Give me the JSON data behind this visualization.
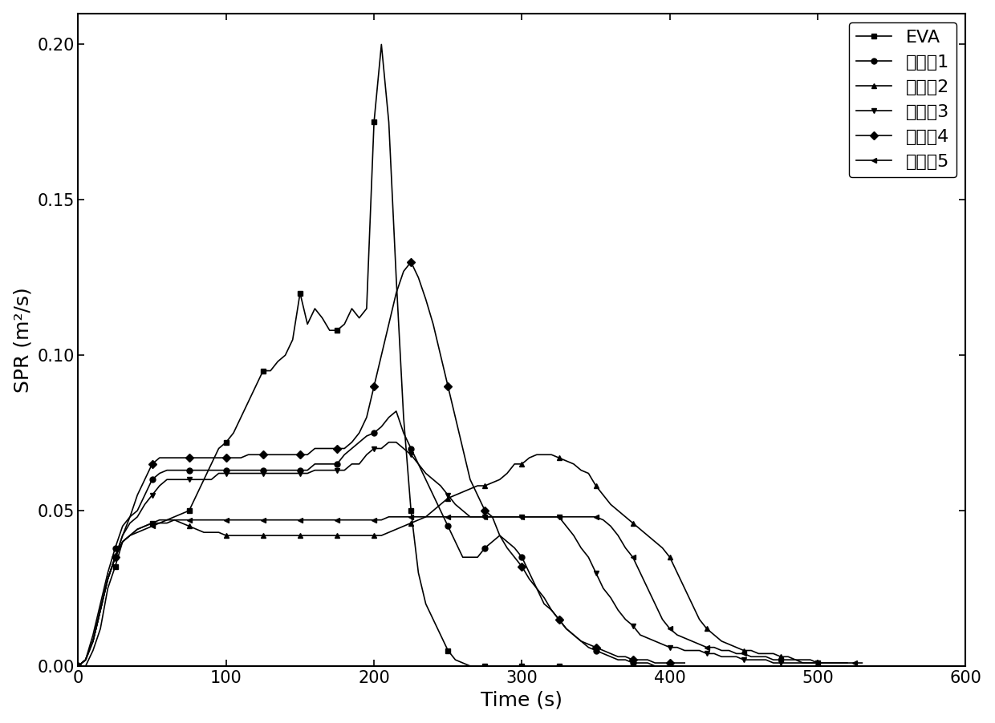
{
  "title": "",
  "xlabel": "Time (s)",
  "ylabel": "SPR (m²/s)",
  "xlim": [
    0,
    600
  ],
  "ylim": [
    0.0,
    0.21
  ],
  "yticks": [
    0.0,
    0.05,
    0.1,
    0.15,
    0.2
  ],
  "xticks": [
    0,
    100,
    200,
    300,
    400,
    500,
    600
  ],
  "series": [
    {
      "label": "EVA",
      "marker": "s",
      "color": "#000000",
      "x": [
        0,
        5,
        10,
        15,
        20,
        25,
        30,
        35,
        40,
        45,
        50,
        55,
        60,
        65,
        70,
        75,
        80,
        85,
        90,
        95,
        100,
        105,
        110,
        115,
        120,
        125,
        130,
        135,
        140,
        145,
        150,
        155,
        160,
        165,
        170,
        175,
        180,
        185,
        190,
        195,
        200,
        205,
        210,
        215,
        220,
        225,
        230,
        235,
        240,
        245,
        250,
        255,
        260,
        265,
        270,
        275,
        280,
        285,
        290,
        295,
        300,
        305,
        310,
        315,
        320,
        325,
        330
      ],
      "y": [
        0.0,
        0.0,
        0.005,
        0.012,
        0.025,
        0.032,
        0.04,
        0.042,
        0.044,
        0.045,
        0.046,
        0.046,
        0.047,
        0.048,
        0.049,
        0.05,
        0.055,
        0.06,
        0.065,
        0.07,
        0.072,
        0.075,
        0.08,
        0.085,
        0.09,
        0.095,
        0.095,
        0.098,
        0.1,
        0.105,
        0.12,
        0.11,
        0.115,
        0.112,
        0.108,
        0.108,
        0.11,
        0.115,
        0.112,
        0.115,
        0.175,
        0.2,
        0.175,
        0.125,
        0.08,
        0.05,
        0.03,
        0.02,
        0.015,
        0.01,
        0.005,
        0.002,
        0.001,
        0.0,
        0.0,
        0.0,
        0.0,
        0.0,
        0.0,
        0.0,
        0.0,
        0.0,
        0.0,
        0.0,
        0.0,
        0.0,
        0.0
      ]
    },
    {
      "label": "实施例1",
      "marker": "o",
      "color": "#000000",
      "x": [
        0,
        5,
        10,
        15,
        20,
        25,
        30,
        35,
        40,
        45,
        50,
        55,
        60,
        65,
        70,
        75,
        80,
        85,
        90,
        95,
        100,
        105,
        110,
        115,
        120,
        125,
        130,
        135,
        140,
        145,
        150,
        155,
        160,
        165,
        170,
        175,
        180,
        185,
        190,
        195,
        200,
        205,
        210,
        215,
        220,
        225,
        230,
        235,
        240,
        245,
        250,
        255,
        260,
        265,
        270,
        275,
        280,
        285,
        290,
        295,
        300,
        305,
        310,
        315,
        320,
        325,
        330,
        335,
        340,
        345,
        350,
        355,
        360,
        365,
        370,
        375,
        380,
        385,
        390,
        395,
        400
      ],
      "y": [
        0.0,
        0.002,
        0.01,
        0.02,
        0.03,
        0.038,
        0.045,
        0.048,
        0.05,
        0.055,
        0.06,
        0.062,
        0.063,
        0.063,
        0.063,
        0.063,
        0.063,
        0.063,
        0.063,
        0.063,
        0.063,
        0.063,
        0.063,
        0.063,
        0.063,
        0.063,
        0.063,
        0.063,
        0.063,
        0.063,
        0.063,
        0.063,
        0.065,
        0.065,
        0.065,
        0.065,
        0.068,
        0.07,
        0.072,
        0.074,
        0.075,
        0.077,
        0.08,
        0.082,
        0.075,
        0.07,
        0.065,
        0.06,
        0.055,
        0.05,
        0.045,
        0.04,
        0.035,
        0.035,
        0.035,
        0.038,
        0.04,
        0.042,
        0.04,
        0.038,
        0.035,
        0.03,
        0.025,
        0.022,
        0.018,
        0.015,
        0.012,
        0.01,
        0.008,
        0.006,
        0.005,
        0.004,
        0.003,
        0.002,
        0.002,
        0.001,
        0.001,
        0.001,
        0.0,
        0.0,
        0.0
      ]
    },
    {
      "label": "实施例2",
      "marker": "^",
      "color": "#000000",
      "x": [
        0,
        5,
        10,
        15,
        20,
        25,
        30,
        35,
        40,
        45,
        50,
        55,
        60,
        65,
        70,
        75,
        80,
        85,
        90,
        95,
        100,
        105,
        110,
        115,
        120,
        125,
        130,
        135,
        140,
        145,
        150,
        155,
        160,
        165,
        170,
        175,
        180,
        185,
        190,
        195,
        200,
        205,
        210,
        215,
        220,
        225,
        230,
        235,
        240,
        245,
        250,
        255,
        260,
        265,
        270,
        275,
        280,
        285,
        290,
        295,
        300,
        305,
        310,
        315,
        320,
        325,
        330,
        335,
        340,
        345,
        350,
        355,
        360,
        365,
        370,
        375,
        380,
        385,
        390,
        395,
        400,
        405,
        410,
        415,
        420,
        425,
        430,
        435,
        440,
        445,
        450,
        455,
        460,
        465,
        470,
        475,
        480,
        485,
        490,
        495,
        500,
        505,
        510,
        515,
        520
      ],
      "y": [
        0.0,
        0.002,
        0.008,
        0.018,
        0.028,
        0.035,
        0.04,
        0.042,
        0.044,
        0.045,
        0.046,
        0.047,
        0.047,
        0.047,
        0.046,
        0.045,
        0.044,
        0.043,
        0.043,
        0.043,
        0.042,
        0.042,
        0.042,
        0.042,
        0.042,
        0.042,
        0.042,
        0.042,
        0.042,
        0.042,
        0.042,
        0.042,
        0.042,
        0.042,
        0.042,
        0.042,
        0.042,
        0.042,
        0.042,
        0.042,
        0.042,
        0.042,
        0.043,
        0.044,
        0.045,
        0.046,
        0.047,
        0.048,
        0.05,
        0.052,
        0.054,
        0.055,
        0.056,
        0.057,
        0.058,
        0.058,
        0.059,
        0.06,
        0.062,
        0.065,
        0.065,
        0.067,
        0.068,
        0.068,
        0.068,
        0.067,
        0.066,
        0.065,
        0.063,
        0.062,
        0.058,
        0.055,
        0.052,
        0.05,
        0.048,
        0.046,
        0.044,
        0.042,
        0.04,
        0.038,
        0.035,
        0.03,
        0.025,
        0.02,
        0.015,
        0.012,
        0.01,
        0.008,
        0.007,
        0.006,
        0.005,
        0.005,
        0.004,
        0.004,
        0.004,
        0.003,
        0.003,
        0.002,
        0.002,
        0.002,
        0.001,
        0.001,
        0.001,
        0.001,
        0.001
      ]
    },
    {
      "label": "实施例3",
      "marker": "v",
      "color": "#000000",
      "x": [
        0,
        5,
        10,
        15,
        20,
        25,
        30,
        35,
        40,
        45,
        50,
        55,
        60,
        65,
        70,
        75,
        80,
        85,
        90,
        95,
        100,
        105,
        110,
        115,
        120,
        125,
        130,
        135,
        140,
        145,
        150,
        155,
        160,
        165,
        170,
        175,
        180,
        185,
        190,
        195,
        200,
        205,
        210,
        215,
        220,
        225,
        230,
        235,
        240,
        245,
        250,
        255,
        260,
        265,
        270,
        275,
        280,
        285,
        290,
        295,
        300,
        305,
        310,
        315,
        320,
        325,
        330,
        335,
        340,
        345,
        350,
        355,
        360,
        365,
        370,
        375,
        380,
        385,
        390,
        395,
        400,
        405,
        410,
        415,
        420,
        425,
        430,
        435,
        440,
        445,
        450,
        455,
        460,
        465,
        470,
        475,
        480,
        485,
        490,
        495,
        500
      ],
      "y": [
        0.0,
        0.002,
        0.008,
        0.018,
        0.028,
        0.035,
        0.042,
        0.046,
        0.048,
        0.052,
        0.055,
        0.058,
        0.06,
        0.06,
        0.06,
        0.06,
        0.06,
        0.06,
        0.06,
        0.062,
        0.062,
        0.062,
        0.062,
        0.062,
        0.062,
        0.062,
        0.062,
        0.062,
        0.062,
        0.062,
        0.062,
        0.062,
        0.063,
        0.063,
        0.063,
        0.063,
        0.063,
        0.065,
        0.065,
        0.068,
        0.07,
        0.07,
        0.072,
        0.072,
        0.07,
        0.068,
        0.065,
        0.062,
        0.06,
        0.058,
        0.055,
        0.052,
        0.05,
        0.048,
        0.048,
        0.048,
        0.048,
        0.048,
        0.048,
        0.048,
        0.048,
        0.048,
        0.048,
        0.048,
        0.048,
        0.048,
        0.045,
        0.042,
        0.038,
        0.035,
        0.03,
        0.025,
        0.022,
        0.018,
        0.015,
        0.013,
        0.01,
        0.009,
        0.008,
        0.007,
        0.006,
        0.006,
        0.005,
        0.005,
        0.005,
        0.004,
        0.004,
        0.003,
        0.003,
        0.003,
        0.002,
        0.002,
        0.002,
        0.002,
        0.001,
        0.001,
        0.001,
        0.001,
        0.001,
        0.001,
        0.001
      ]
    },
    {
      "label": "实施例4",
      "marker": "D",
      "color": "#000000",
      "x": [
        0,
        5,
        10,
        15,
        20,
        25,
        30,
        35,
        40,
        45,
        50,
        55,
        60,
        65,
        70,
        75,
        80,
        85,
        90,
        95,
        100,
        105,
        110,
        115,
        120,
        125,
        130,
        135,
        140,
        145,
        150,
        155,
        160,
        165,
        170,
        175,
        180,
        185,
        190,
        195,
        200,
        205,
        210,
        215,
        220,
        225,
        230,
        235,
        240,
        245,
        250,
        255,
        260,
        265,
        270,
        275,
        280,
        285,
        290,
        295,
        300,
        305,
        310,
        315,
        320,
        325,
        330,
        335,
        340,
        345,
        350,
        355,
        360,
        365,
        370,
        375,
        380,
        385,
        390,
        395,
        400,
        405,
        410
      ],
      "y": [
        0.0,
        0.002,
        0.008,
        0.018,
        0.028,
        0.035,
        0.042,
        0.048,
        0.055,
        0.06,
        0.065,
        0.067,
        0.067,
        0.067,
        0.067,
        0.067,
        0.067,
        0.067,
        0.067,
        0.067,
        0.067,
        0.067,
        0.067,
        0.068,
        0.068,
        0.068,
        0.068,
        0.068,
        0.068,
        0.068,
        0.068,
        0.068,
        0.07,
        0.07,
        0.07,
        0.07,
        0.07,
        0.072,
        0.075,
        0.08,
        0.09,
        0.1,
        0.11,
        0.12,
        0.127,
        0.13,
        0.125,
        0.118,
        0.11,
        0.1,
        0.09,
        0.08,
        0.07,
        0.06,
        0.055,
        0.05,
        0.048,
        0.042,
        0.038,
        0.035,
        0.032,
        0.028,
        0.025,
        0.02,
        0.018,
        0.015,
        0.012,
        0.01,
        0.008,
        0.007,
        0.006,
        0.005,
        0.004,
        0.003,
        0.003,
        0.002,
        0.002,
        0.002,
        0.001,
        0.001,
        0.001,
        0.001,
        0.001
      ]
    },
    {
      "label": "实施例5",
      "marker": "<",
      "color": "#000000",
      "x": [
        0,
        5,
        10,
        15,
        20,
        25,
        30,
        35,
        40,
        45,
        50,
        55,
        60,
        65,
        70,
        75,
        80,
        85,
        90,
        95,
        100,
        105,
        110,
        115,
        120,
        125,
        130,
        135,
        140,
        145,
        150,
        155,
        160,
        165,
        170,
        175,
        180,
        185,
        190,
        195,
        200,
        205,
        210,
        215,
        220,
        225,
        230,
        235,
        240,
        245,
        250,
        255,
        260,
        265,
        270,
        275,
        280,
        285,
        290,
        295,
        300,
        305,
        310,
        315,
        320,
        325,
        330,
        335,
        340,
        345,
        350,
        355,
        360,
        365,
        370,
        375,
        380,
        385,
        390,
        395,
        400,
        405,
        410,
        415,
        420,
        425,
        430,
        435,
        440,
        445,
        450,
        455,
        460,
        465,
        470,
        475,
        480,
        485,
        490,
        495,
        500,
        505,
        510,
        515,
        520,
        525,
        530
      ],
      "y": [
        0.0,
        0.002,
        0.008,
        0.018,
        0.028,
        0.035,
        0.04,
        0.042,
        0.043,
        0.044,
        0.045,
        0.046,
        0.046,
        0.047,
        0.047,
        0.047,
        0.047,
        0.047,
        0.047,
        0.047,
        0.047,
        0.047,
        0.047,
        0.047,
        0.047,
        0.047,
        0.047,
        0.047,
        0.047,
        0.047,
        0.047,
        0.047,
        0.047,
        0.047,
        0.047,
        0.047,
        0.047,
        0.047,
        0.047,
        0.047,
        0.047,
        0.047,
        0.048,
        0.048,
        0.048,
        0.048,
        0.048,
        0.048,
        0.048,
        0.048,
        0.048,
        0.048,
        0.048,
        0.048,
        0.048,
        0.048,
        0.048,
        0.048,
        0.048,
        0.048,
        0.048,
        0.048,
        0.048,
        0.048,
        0.048,
        0.048,
        0.048,
        0.048,
        0.048,
        0.048,
        0.048,
        0.047,
        0.045,
        0.042,
        0.038,
        0.035,
        0.03,
        0.025,
        0.02,
        0.015,
        0.012,
        0.01,
        0.009,
        0.008,
        0.007,
        0.006,
        0.006,
        0.005,
        0.005,
        0.004,
        0.004,
        0.003,
        0.003,
        0.003,
        0.002,
        0.002,
        0.002,
        0.002,
        0.001,
        0.001,
        0.001,
        0.001,
        0.001,
        0.001,
        0.001,
        0.001,
        0.001
      ]
    }
  ],
  "legend_loc": "upper right",
  "background_color": "#ffffff",
  "marker_size": 5,
  "linewidth": 1.2,
  "markevery": 5
}
